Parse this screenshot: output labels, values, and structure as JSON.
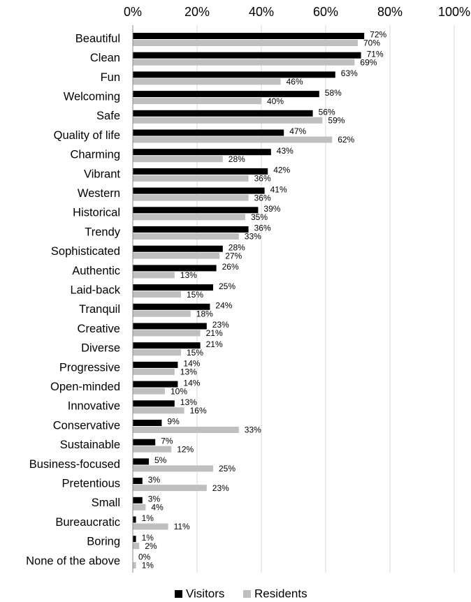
{
  "chart_data": {
    "type": "bar",
    "orientation": "horizontal",
    "categories": [
      "Beautiful",
      "Clean",
      "Fun",
      "Welcoming",
      "Safe",
      "Quality of life",
      "Charming",
      "Vibrant",
      "Western",
      "Historical",
      "Trendy",
      "Sophisticated",
      "Authentic",
      "Laid-back",
      "Tranquil",
      "Creative",
      "Diverse",
      "Progressive",
      "Open-minded",
      "Innovative",
      "Conservative",
      "Sustainable",
      "Business-focused",
      "Pretentious",
      "Small",
      "Bureaucratic",
      "Boring",
      "None of the above"
    ],
    "series": [
      {
        "name": "Visitors",
        "color": "#000000",
        "values": [
          72,
          71,
          63,
          58,
          56,
          47,
          43,
          42,
          41,
          39,
          36,
          28,
          26,
          25,
          24,
          23,
          21,
          14,
          14,
          13,
          9,
          7,
          5,
          3,
          3,
          1,
          1,
          0
        ],
        "value_labels": [
          "72%",
          "71%",
          "63%",
          "58%",
          "56%",
          "47%",
          "43%",
          "42%",
          "41%",
          "39%",
          "36%",
          "28%",
          "26%",
          "25%",
          "24%",
          "23%",
          "21%",
          "14%",
          "14%",
          "13%",
          "9%",
          "7%",
          "5%",
          "3%",
          "3%",
          "1%",
          "1%",
          "0%"
        ]
      },
      {
        "name": "Residents",
        "color": "#bfbfbf",
        "values": [
          70,
          69,
          46,
          40,
          59,
          62,
          28,
          36,
          36,
          35,
          33,
          27,
          13,
          15,
          18,
          21,
          15,
          13,
          10,
          16,
          33,
          12,
          25,
          23,
          4,
          11,
          2,
          1
        ],
        "value_labels": [
          "70%",
          "69%",
          "46%",
          "40%",
          "59%",
          "62%",
          "28%",
          "36%",
          "36%",
          "35%",
          "33%",
          "27%",
          "13%",
          "15%",
          "18%",
          "21%",
          "15%",
          "13%",
          "10%",
          "16%",
          "33%",
          "12%",
          "25%",
          "23%",
          "4%",
          "11%",
          "2%",
          "1%"
        ]
      }
    ],
    "xlim": [
      0,
      100
    ],
    "xticks": [
      {
        "value": 0,
        "label": "0%"
      },
      {
        "value": 20,
        "label": "20%"
      },
      {
        "value": 40,
        "label": "40%"
      },
      {
        "value": 60,
        "label": "60%"
      },
      {
        "value": 80,
        "label": "80%"
      },
      {
        "value": 100,
        "label": "100%"
      }
    ],
    "grid": true,
    "legend": "bottom"
  }
}
